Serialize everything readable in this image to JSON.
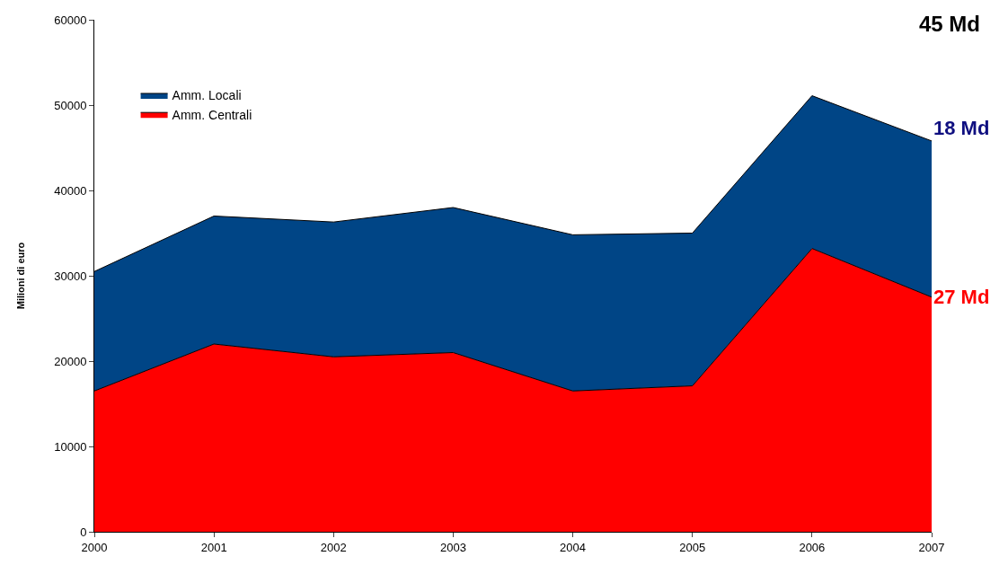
{
  "chart_data": {
    "type": "area",
    "stacked": true,
    "ylabel": "Milioni di euro",
    "categories": [
      "2000",
      "2001",
      "2002",
      "2003",
      "2004",
      "2005",
      "2006",
      "2007"
    ],
    "series": [
      {
        "name": "Amm. Centrali",
        "color": "#ff0000",
        "values": [
          16500,
          22000,
          20500,
          21000,
          16500,
          17100,
          33200,
          27500
        ]
      },
      {
        "name": "Amm. Locali",
        "color": "#004586",
        "values": [
          14000,
          15000,
          15800,
          17000,
          18300,
          17900,
          17900,
          18300
        ]
      }
    ],
    "ylim": [
      0,
      60000
    ],
    "yticks": [
      0,
      10000,
      20000,
      30000,
      40000,
      50000,
      60000
    ],
    "legend": "top left",
    "annotations": [
      "45 Md",
      {
        "text": "18 Md",
        "x": "2007",
        "y": 45800
      },
      {
        "text": "27 Md",
        "x": "2007",
        "y": 27500
      }
    ]
  }
}
